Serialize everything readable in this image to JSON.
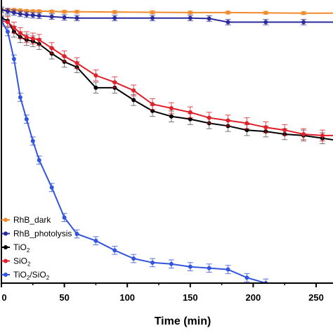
{
  "chart_data": {
    "type": "line",
    "xlabel": "Time (min)",
    "ylabel": "",
    "title": "",
    "xlim": [
      0,
      270
    ],
    "ylim": [
      0,
      1.02
    ],
    "x_ticks": [
      0,
      50,
      100,
      150,
      200,
      250
    ],
    "grid": false,
    "legend_position": "bottom-left",
    "series": [
      {
        "name": "RhB_dark",
        "color": "#f08a2c",
        "x": [
          0,
          5,
          10,
          15,
          20,
          25,
          30,
          40,
          50,
          60,
          90,
          120,
          150,
          180,
          210,
          240,
          270
        ],
        "y": [
          1.0,
          1.0,
          1.0,
          0.998,
          0.996,
          0.995,
          0.995,
          0.994,
          0.993,
          0.993,
          0.992,
          0.991,
          0.99,
          0.99,
          0.989,
          0.988,
          0.988
        ],
        "err": [
          0.005,
          0.005,
          0.005,
          0.005,
          0.005,
          0.005,
          0.005,
          0.005,
          0.005,
          0.005,
          0.005,
          0.005,
          0.005,
          0.005,
          0.005,
          0.005,
          0.005
        ]
      },
      {
        "name": "RhB_photolysis",
        "color": "#2b2b9c",
        "x": [
          0,
          5,
          10,
          15,
          20,
          25,
          30,
          40,
          50,
          60,
          90,
          120,
          150,
          165,
          180,
          210,
          240,
          270
        ],
        "y": [
          1.0,
          0.995,
          0.99,
          0.985,
          0.982,
          0.98,
          0.978,
          0.975,
          0.972,
          0.97,
          0.97,
          0.97,
          0.97,
          0.968,
          0.955,
          0.955,
          0.955,
          0.955
        ],
        "err": [
          0.01,
          0.01,
          0.01,
          0.01,
          0.01,
          0.01,
          0.01,
          0.01,
          0.01,
          0.01,
          0.01,
          0.01,
          0.01,
          0.01,
          0.01,
          0.01,
          0.01,
          0.01
        ]
      },
      {
        "name": "TiO2",
        "color": "#000000",
        "x": [
          0,
          5,
          10,
          15,
          20,
          25,
          30,
          40,
          50,
          60,
          75,
          90,
          105,
          120,
          135,
          150,
          165,
          180,
          195,
          210,
          225,
          240,
          255,
          270
        ],
        "y": [
          0.97,
          0.96,
          0.92,
          0.9,
          0.89,
          0.885,
          0.875,
          0.84,
          0.81,
          0.79,
          0.715,
          0.715,
          0.67,
          0.63,
          0.61,
          0.6,
          0.585,
          0.575,
          0.56,
          0.555,
          0.545,
          0.54,
          0.53,
          0.52
        ],
        "err": [
          0.02,
          0.02,
          0.02,
          0.02,
          0.02,
          0.02,
          0.02,
          0.02,
          0.02,
          0.02,
          0.02,
          0.02,
          0.02,
          0.02,
          0.02,
          0.02,
          0.02,
          0.02,
          0.02,
          0.02,
          0.02,
          0.02,
          0.02,
          0.02
        ]
      },
      {
        "name": "SiO2",
        "color": "#e0202a",
        "x": [
          0,
          5,
          10,
          15,
          20,
          25,
          30,
          40,
          50,
          60,
          75,
          90,
          105,
          120,
          135,
          150,
          165,
          180,
          195,
          210,
          225,
          240,
          255,
          270
        ],
        "y": [
          0.96,
          0.955,
          0.935,
          0.915,
          0.9,
          0.895,
          0.89,
          0.86,
          0.83,
          0.805,
          0.76,
          0.735,
          0.705,
          0.655,
          0.64,
          0.625,
          0.605,
          0.595,
          0.585,
          0.57,
          0.56,
          0.545,
          0.54,
          0.54
        ],
        "err": [
          0.02,
          0.02,
          0.02,
          0.02,
          0.02,
          0.02,
          0.02,
          0.02,
          0.02,
          0.02,
          0.02,
          0.02,
          0.02,
          0.02,
          0.02,
          0.02,
          0.02,
          0.02,
          0.02,
          0.02,
          0.02,
          0.02,
          0.02,
          0.02
        ]
      },
      {
        "name": "TiO2/SiO2",
        "color": "#3355dd",
        "x": [
          0,
          5,
          10,
          15,
          20,
          25,
          30,
          40,
          50,
          60,
          75,
          90,
          105,
          120,
          135,
          150,
          165,
          180,
          195,
          210
        ],
        "y": [
          0.96,
          0.92,
          0.82,
          0.68,
          0.6,
          0.52,
          0.45,
          0.35,
          0.24,
          0.18,
          0.155,
          0.12,
          0.09,
          0.075,
          0.07,
          0.06,
          0.055,
          0.05,
          0.02,
          0.0
        ],
        "err": [
          0.015,
          0.015,
          0.015,
          0.015,
          0.015,
          0.015,
          0.015,
          0.015,
          0.015,
          0.015,
          0.015,
          0.015,
          0.015,
          0.015,
          0.015,
          0.015,
          0.015,
          0.015,
          0.015,
          0.015
        ]
      }
    ]
  },
  "legend": {
    "items": [
      {
        "label": "RhB_dark",
        "sub": ""
      },
      {
        "label": "RhB_photolysis",
        "sub": ""
      },
      {
        "label": "TiO",
        "sub": "2"
      },
      {
        "label": "SiO",
        "sub": "2"
      },
      {
        "label": "TiO",
        "sub": "2",
        "label2": "/SiO",
        "sub2": "2"
      }
    ]
  }
}
